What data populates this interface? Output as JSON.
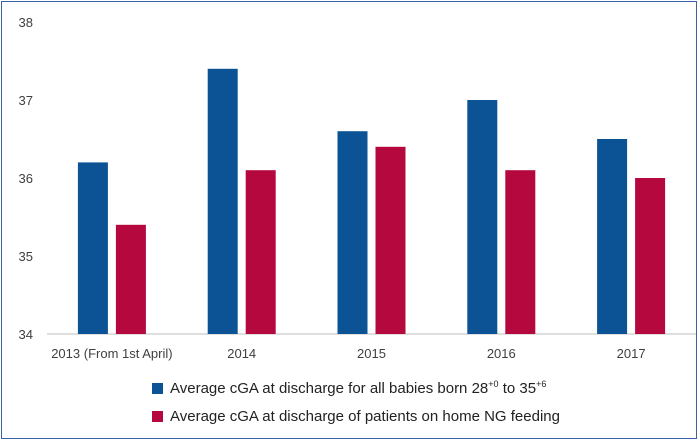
{
  "chart_data": {
    "type": "bar",
    "categories": [
      "2013 (From 1st April)",
      "2014",
      "2015",
      "2016",
      "2017"
    ],
    "series": [
      {
        "label_text": "Average cGA at discharge for all babies born 28",
        "label_sup1": "+0",
        "label_mid": " to 35",
        "label_sup2": "+6",
        "color": "#0b5394",
        "values": [
          36.2,
          37.4,
          36.6,
          37.0,
          36.5
        ]
      },
      {
        "label_text": "Average cGA at discharge of patients on home NG feeding",
        "color": "#b5083f",
        "values": [
          35.4,
          36.1,
          36.4,
          36.1,
          36.0
        ]
      }
    ],
    "ylim": [
      34,
      38
    ],
    "yticks": [
      "34",
      "35",
      "36",
      "37",
      "38"
    ],
    "grid": false,
    "legend_position": "bottom"
  }
}
